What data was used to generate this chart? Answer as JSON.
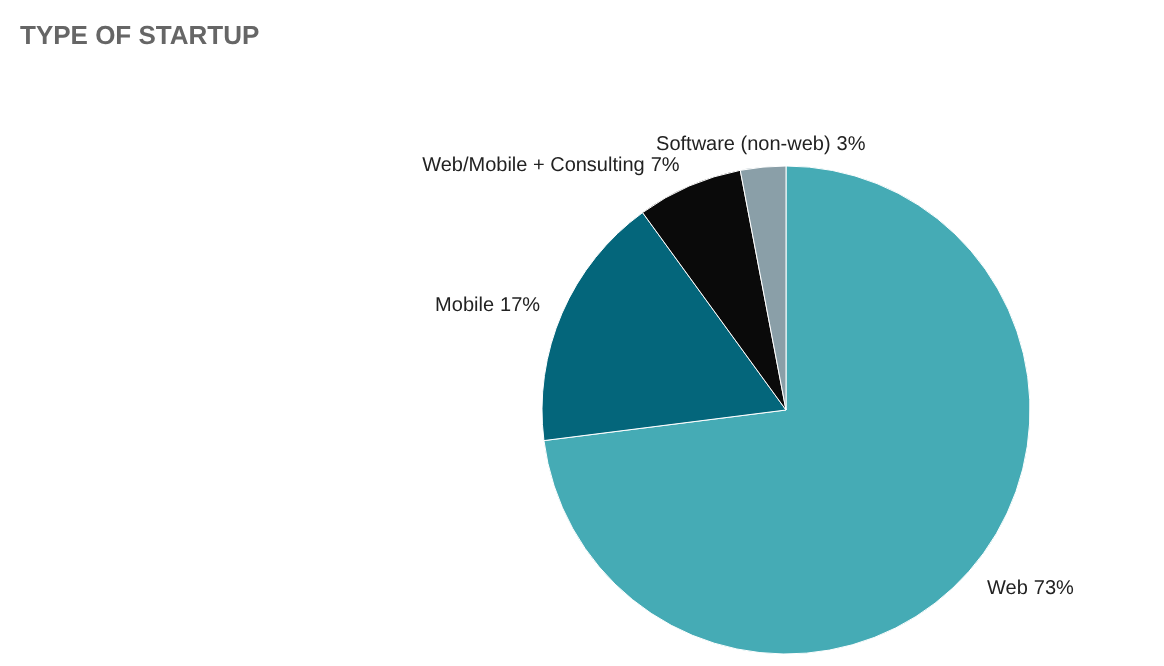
{
  "chart_data": {
    "type": "pie",
    "title": "TYPE OF STARTUP",
    "categories": [
      "Web",
      "Mobile",
      "Web/Mobile + Consulting",
      "Software (non-web)"
    ],
    "values": [
      73,
      17,
      7,
      3
    ],
    "colors": [
      "#45abb5",
      "#04667b",
      "#0a0a0a",
      "#8a9fa8"
    ],
    "value_labels": [
      "73%",
      "17%",
      "7%",
      "3%"
    ]
  }
}
